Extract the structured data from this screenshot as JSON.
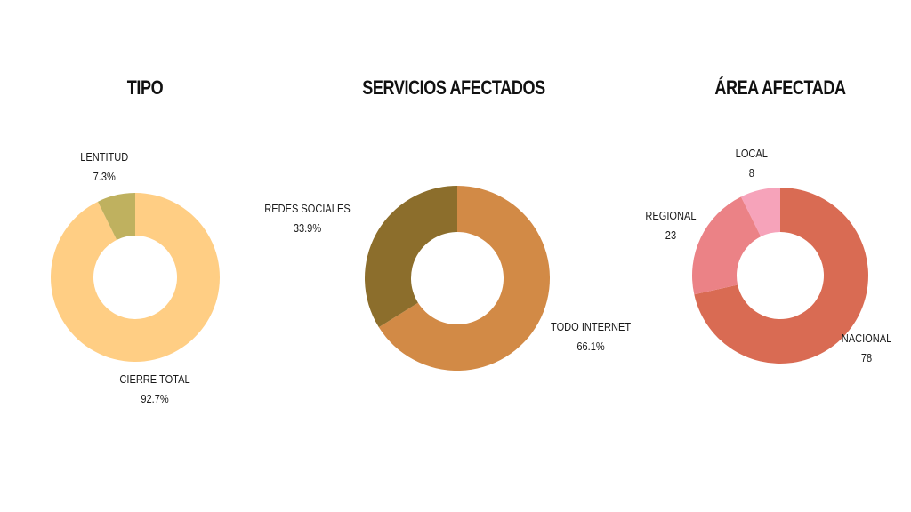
{
  "chart_data": [
    {
      "type": "donut",
      "title": "TIPO",
      "slices": [
        {
          "label": "CIERRE TOTAL",
          "value": 92.7,
          "display": "92.7%",
          "color": "#FFCE84"
        },
        {
          "label": "LENTITUD",
          "value": 7.3,
          "display": "7.3%",
          "color": "#BFB15F"
        }
      ]
    },
    {
      "type": "donut",
      "title": "SERVICIOS AFECTADOS",
      "slices": [
        {
          "label": "TODO INTERNET",
          "value": 66.1,
          "display": "66.1%",
          "color": "#D28A46"
        },
        {
          "label": "REDES SOCIALES",
          "value": 33.9,
          "display": "33.9%",
          "color": "#8C6E2C"
        }
      ]
    },
    {
      "type": "donut",
      "title": "ÁREA AFECTADA",
      "slices": [
        {
          "label": "NACIONAL",
          "value": 78,
          "display": "78",
          "color": "#D96B53"
        },
        {
          "label": "REGIONAL",
          "value": 23,
          "display": "23",
          "color": "#EB8286"
        },
        {
          "label": "LOCAL",
          "value": 8,
          "display": "8",
          "color": "#F6A3BA"
        }
      ]
    }
  ]
}
